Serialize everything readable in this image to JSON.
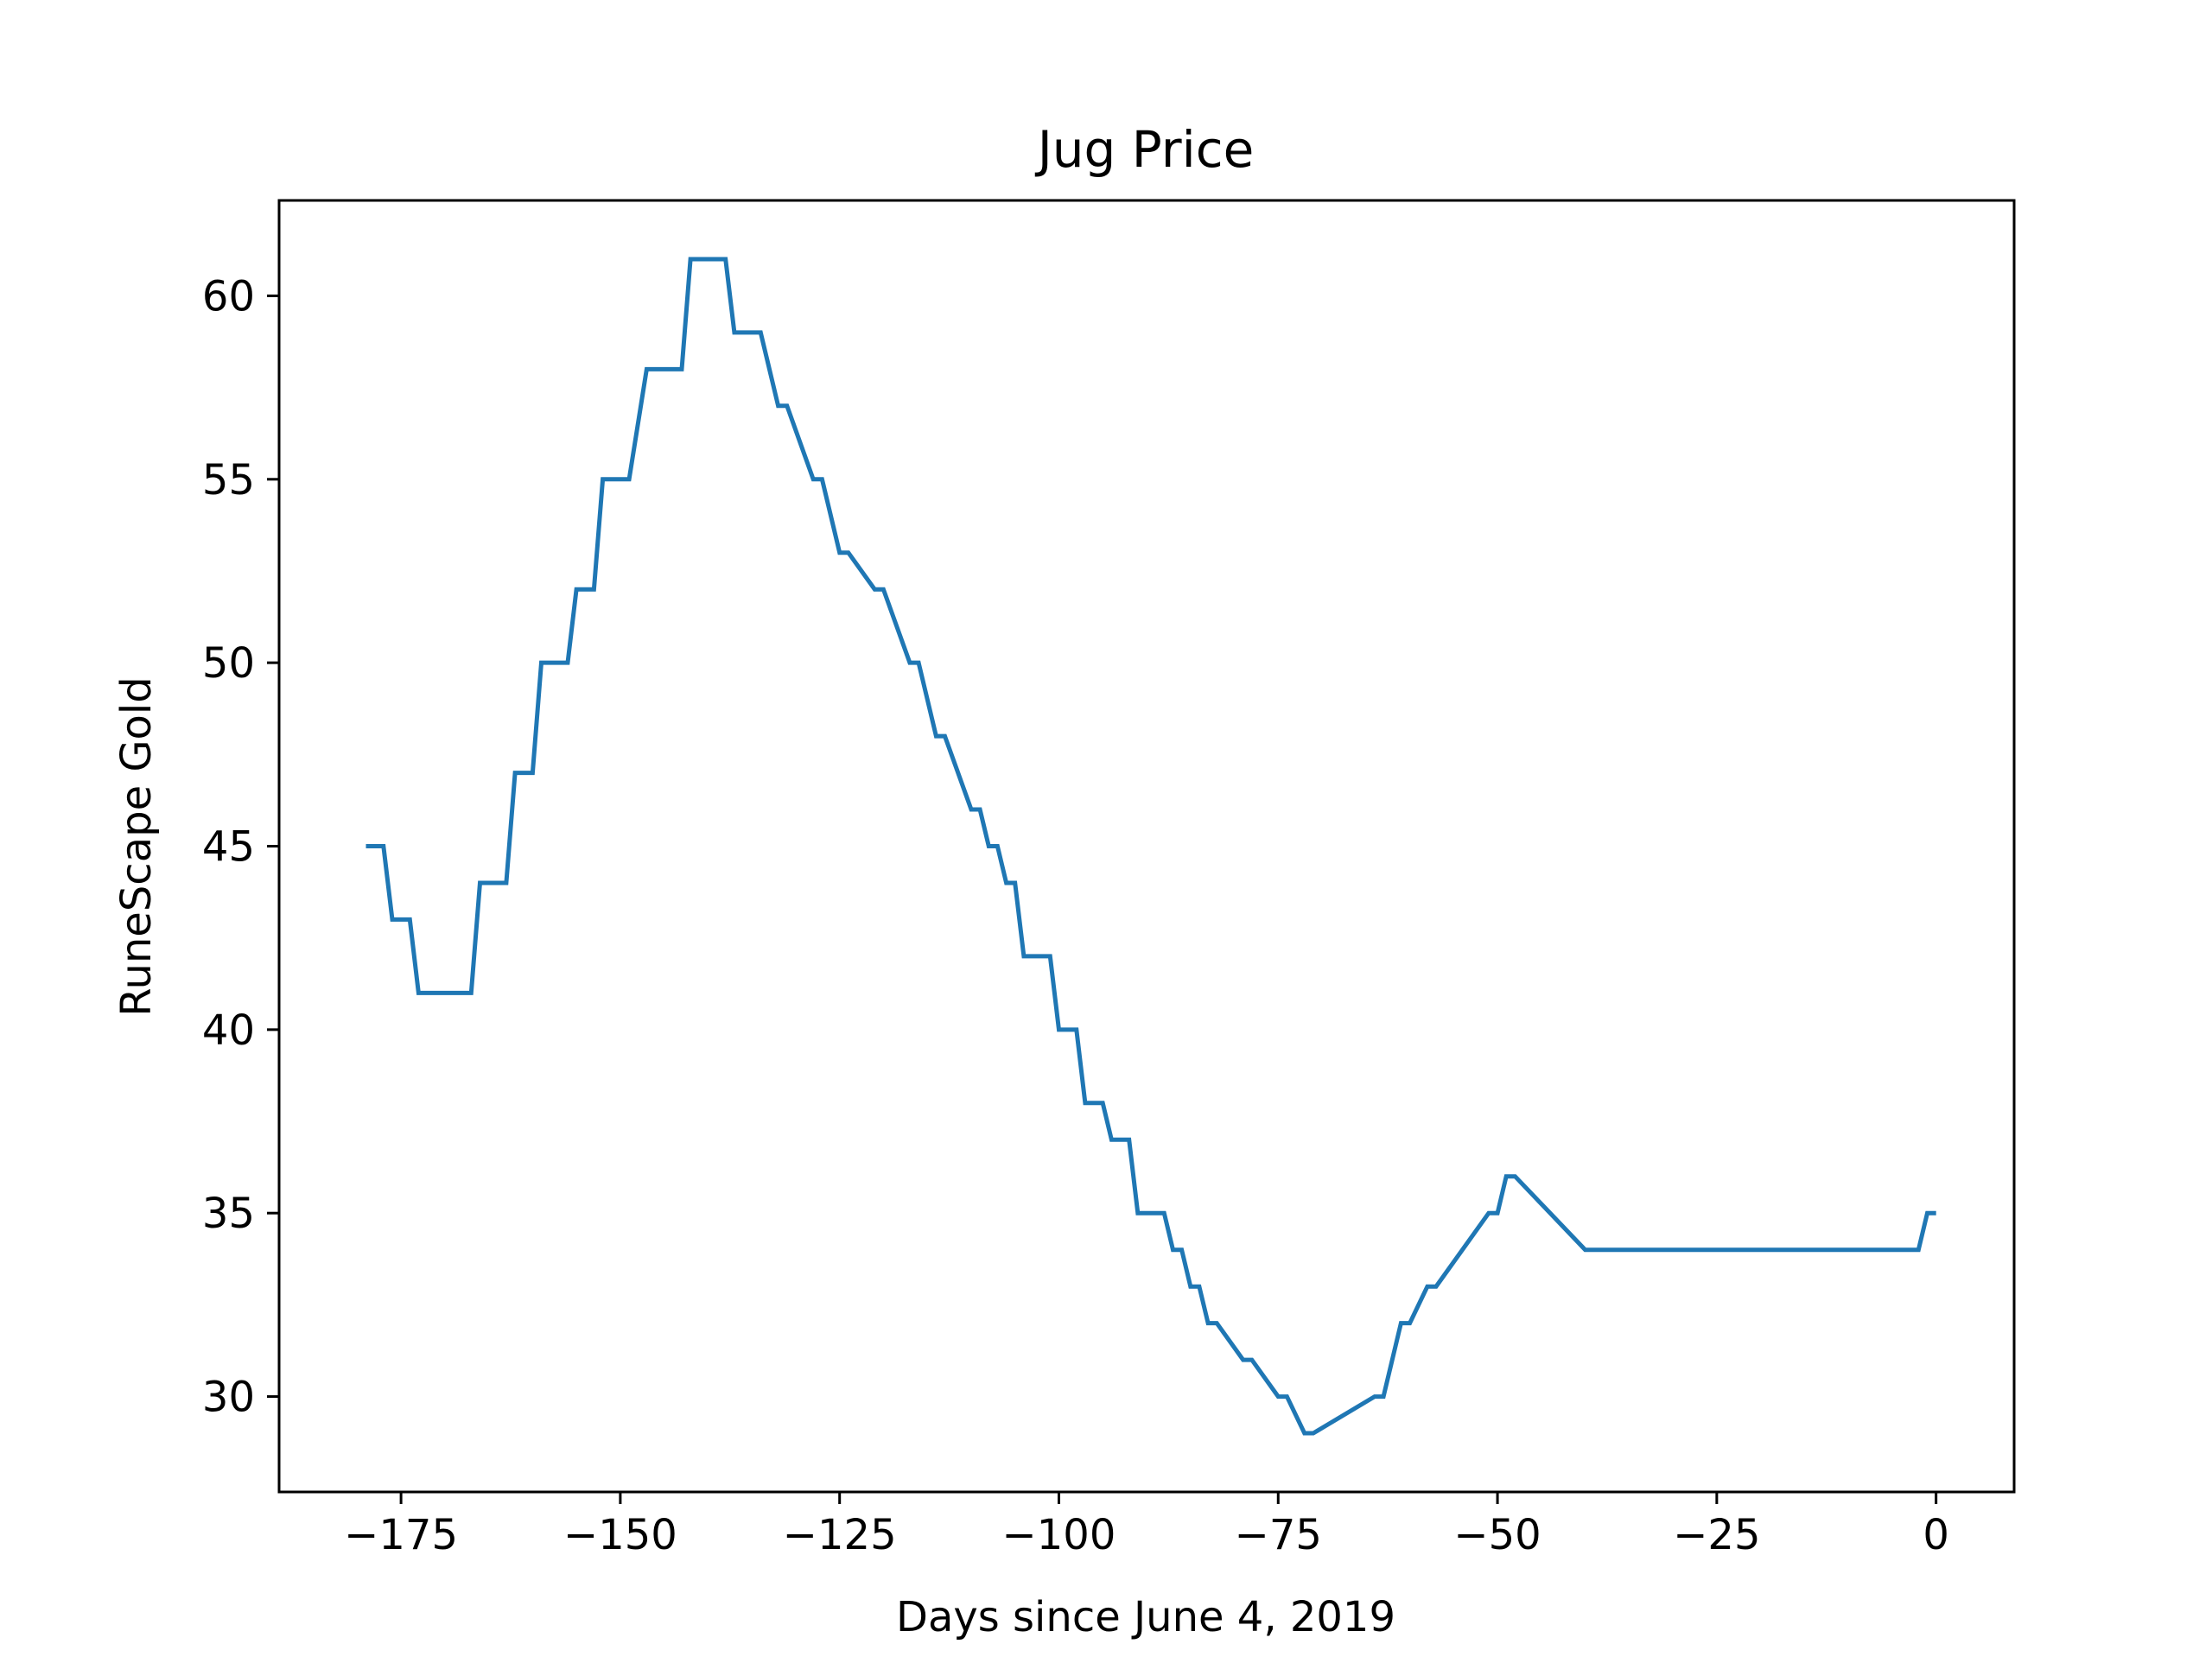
{
  "chart_data": {
    "type": "line",
    "title": "Jug Price",
    "xlabel": "Days since June 4, 2019",
    "ylabel": "RuneScape Gold",
    "xlim": [
      -188.9,
      8.9
    ],
    "ylim": [
      27.4,
      62.6
    ],
    "xticks": [
      -175,
      -150,
      -125,
      -100,
      -75,
      -50,
      -25,
      0
    ],
    "yticks": [
      30,
      35,
      40,
      45,
      50,
      55,
      60
    ],
    "grid": false,
    "legend": "none",
    "line_color": "#1f77b4",
    "series": [
      {
        "x": [
          -179,
          -177,
          -176,
          -175,
          -174,
          -173,
          -167,
          -166,
          -164,
          -163,
          -162,
          -161,
          -160,
          -159,
          -157,
          -156,
          -155,
          -154,
          -153,
          -152,
          -150,
          -149,
          -147,
          -146,
          -143,
          -142,
          -138,
          -137,
          -135,
          -134,
          -132,
          -131,
          -128,
          -127,
          -125,
          -124,
          -121,
          -120,
          -117,
          -116,
          -114,
          -113,
          -110,
          -109,
          -108,
          -107,
          -106,
          -105,
          -104,
          -103,
          -101,
          -100,
          -98,
          -97,
          -95,
          -94,
          -92,
          -91,
          -89,
          -88,
          -87,
          -86,
          -85,
          -84,
          -83,
          -82,
          -79,
          -78,
          -75,
          -74,
          -72,
          -71,
          -64,
          -63,
          -61,
          -60,
          -58,
          -57,
          -51,
          -50,
          -49,
          -48,
          -40,
          -39,
          -36,
          -35,
          -32,
          -31,
          -29,
          -28,
          -23,
          -22,
          -2,
          -1,
          0
        ],
        "y": [
          45,
          45,
          43,
          43,
          43,
          41,
          41,
          44,
          44,
          44,
          47,
          47,
          47,
          50,
          50,
          50,
          52,
          52,
          52,
          55,
          55,
          55,
          58,
          58,
          58,
          61,
          61,
          59,
          59,
          59,
          57,
          57,
          55,
          55,
          53,
          53,
          52,
          52,
          50,
          50,
          48,
          48,
          46,
          46,
          45,
          45,
          44,
          44,
          42,
          42,
          42,
          40,
          40,
          38,
          38,
          37,
          37,
          35,
          35,
          35,
          34,
          34,
          33,
          33,
          32,
          32,
          31,
          31,
          30,
          30,
          29,
          29,
          30,
          30,
          32,
          32,
          33,
          33,
          35,
          35,
          36,
          36,
          34,
          34,
          34,
          34,
          34,
          34,
          34,
          34,
          34,
          34,
          34,
          35,
          35
        ]
      }
    ]
  }
}
